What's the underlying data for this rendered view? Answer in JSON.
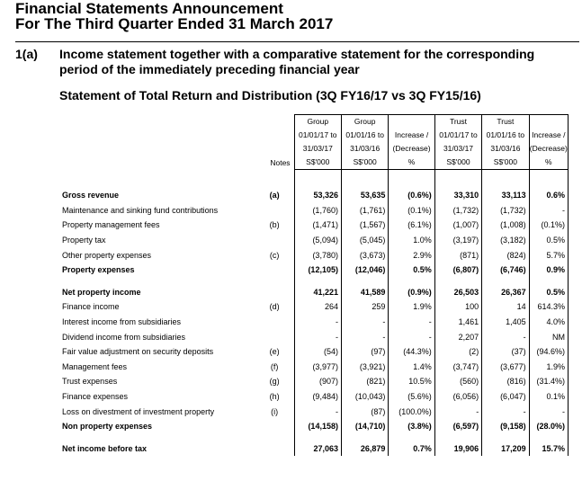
{
  "header": {
    "title_line1": "Financial Statements Announcement",
    "title_line2": "For The Third Quarter Ended 31 March 2017"
  },
  "section": {
    "number": "1(a)",
    "text": "Income statement together with a comparative statement for the corresponding period of the immediately preceding financial year"
  },
  "statement_title": "Statement of Total Return and Distribution (3Q FY16/17 vs 3Q FY15/16)",
  "columns": {
    "notes": "Notes",
    "group_a": [
      "Group",
      "01/01/17 to",
      "31/03/17",
      "S$'000"
    ],
    "group_b": [
      "Group",
      "01/01/16 to",
      "31/03/16",
      "S$'000"
    ],
    "group_chg": [
      "",
      "Increase /",
      "(Decrease)",
      "%"
    ],
    "trust_a": [
      "Trust",
      "01/01/17 to",
      "31/03/17",
      "S$'000"
    ],
    "trust_b": [
      "Trust",
      "01/01/16 to",
      "31/03/16",
      "S$'000"
    ],
    "trust_chg": [
      "",
      "Increase /",
      "(Decrease)",
      "%"
    ]
  },
  "rows": [
    {
      "label": "Gross revenue",
      "note": "(a)",
      "ga": "53,326",
      "gb": "53,635",
      "gc": "(0.6%)",
      "ta": "33,310",
      "tb": "33,113",
      "tc": "0.6%",
      "bold": true
    },
    {
      "label": "Maintenance and sinking fund contributions",
      "note": "",
      "ga": "(1,760)",
      "gb": "(1,761)",
      "gc": "(0.1%)",
      "ta": "(1,732)",
      "tb": "(1,732)",
      "tc": "-"
    },
    {
      "label": "Property management fees",
      "note": "(b)",
      "ga": "(1,471)",
      "gb": "(1,567)",
      "gc": "(6.1%)",
      "ta": "(1,007)",
      "tb": "(1,008)",
      "tc": "(0.1%)"
    },
    {
      "label": "Property tax",
      "note": "",
      "ga": "(5,094)",
      "gb": "(5,045)",
      "gc": "1.0%",
      "ta": "(3,197)",
      "tb": "(3,182)",
      "tc": "0.5%"
    },
    {
      "label": "Other property expenses",
      "note": "(c)",
      "ga": "(3,780)",
      "gb": "(3,673)",
      "gc": "2.9%",
      "ta": "(871)",
      "tb": "(824)",
      "tc": "5.7%"
    },
    {
      "label": "Property expenses",
      "note": "",
      "ga": "(12,105)",
      "gb": "(12,046)",
      "gc": "0.5%",
      "ta": "(6,807)",
      "tb": "(6,746)",
      "tc": "0.9%",
      "bold": true
    },
    {
      "label": "Net property income",
      "note": "",
      "ga": "41,221",
      "gb": "41,589",
      "gc": "(0.9%)",
      "ta": "26,503",
      "tb": "26,367",
      "tc": "0.5%",
      "bold": true,
      "gap": true
    },
    {
      "label": "Finance income",
      "note": "(d)",
      "ga": "264",
      "gb": "259",
      "gc": "1.9%",
      "ta": "100",
      "tb": "14",
      "tc": "614.3%"
    },
    {
      "label": "Interest income from subsidiaries",
      "note": "",
      "ga": "-",
      "gb": "-",
      "gc": "-",
      "ta": "1,461",
      "tb": "1,405",
      "tc": "4.0%"
    },
    {
      "label": "Dividend income from subsidiaries",
      "note": "",
      "ga": "-",
      "gb": "-",
      "gc": "-",
      "ta": "2,207",
      "tb": "-",
      "tc": "NM"
    },
    {
      "label": "Fair value adjustment on security deposits",
      "note": "(e)",
      "ga": "(54)",
      "gb": "(97)",
      "gc": "(44.3%)",
      "ta": "(2)",
      "tb": "(37)",
      "tc": "(94.6%)"
    },
    {
      "label": "Management fees",
      "note": "(f)",
      "ga": "(3,977)",
      "gb": "(3,921)",
      "gc": "1.4%",
      "ta": "(3,747)",
      "tb": "(3,677)",
      "tc": "1.9%"
    },
    {
      "label": "Trust expenses",
      "note": "(g)",
      "ga": "(907)",
      "gb": "(821)",
      "gc": "10.5%",
      "ta": "(560)",
      "tb": "(816)",
      "tc": "(31.4%)"
    },
    {
      "label": "Finance expenses",
      "note": "(h)",
      "ga": "(9,484)",
      "gb": "(10,043)",
      "gc": "(5.6%)",
      "ta": "(6,056)",
      "tb": "(6,047)",
      "tc": "0.1%"
    },
    {
      "label": "Loss on divestment of investment property",
      "note": "(i)",
      "ga": "-",
      "gb": "(87)",
      "gc": "(100.0%)",
      "ta": "-",
      "tb": "-",
      "tc": "-"
    },
    {
      "label": "Non property expenses",
      "note": "",
      "ga": "(14,158)",
      "gb": "(14,710)",
      "gc": "(3.8%)",
      "ta": "(6,597)",
      "tb": "(9,158)",
      "tc": "(28.0%)",
      "bold": true
    },
    {
      "label": "Net income before tax",
      "note": "",
      "ga": "27,063",
      "gb": "26,879",
      "gc": "0.7%",
      "ta": "19,906",
      "tb": "17,209",
      "tc": "15.7%",
      "bold": true,
      "gap": true
    }
  ]
}
